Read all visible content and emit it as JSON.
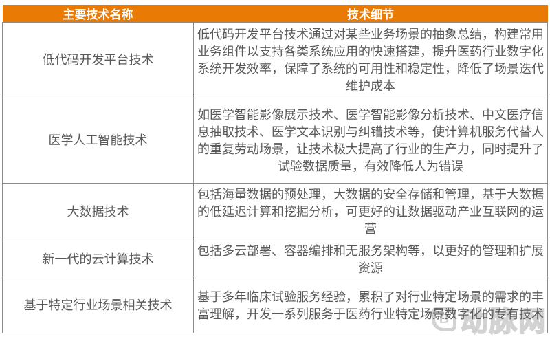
{
  "table": {
    "headers": [
      {
        "label": "主要技术名称"
      },
      {
        "label": "技术细节"
      }
    ],
    "rows": [
      {
        "name": "低代码开发平台技术",
        "detail": "低代码开发平台技术通过对某些业务场景的抽象总结，构建常用业务组件以支持各类系统应用的快速搭建，提升医药行业数字化系统开发效率，保障了系统的可用性和稳定性，降低了场景迭代维护成本"
      },
      {
        "name": "医学人工智能技术",
        "detail": "如医学智能影像展示技术、医学智能影像分析技术、中文医疗信息抽取技术、医学文本识别与纠错技术等，使计算机服务代替人的重复劳动场景，让技术极大提高了行业的生产力，同时提升了试验数据质量，有效降低人为错误"
      },
      {
        "name": "大数据技术",
        "detail": "包括海量数据的预处理，大数据的安全存储和管理，基于大数据的低延迟计算和挖掘分析，可更好的让数据驱动产业互联网的运营"
      },
      {
        "name": "新一代的云计算技术",
        "detail": "包括多云部署、容器编排和无服务架构等，以更好的管理和扩展资源"
      },
      {
        "name": "基于特定行业场景相关技术",
        "detail": "基于多年临床试验服务经验，累积了对行业特定场景的需求的丰富理解，开发一系列服务于医药行业特定场景数字化的专有技术"
      }
    ]
  },
  "watermark": {
    "logo_text": "B",
    "brand": "动脉网"
  },
  "colors": {
    "header_bg": "#e97b05",
    "header_text": "#ffffff",
    "body_text": "#595959",
    "border": "#8c8c8c",
    "watermark": "#d2d2d2"
  }
}
